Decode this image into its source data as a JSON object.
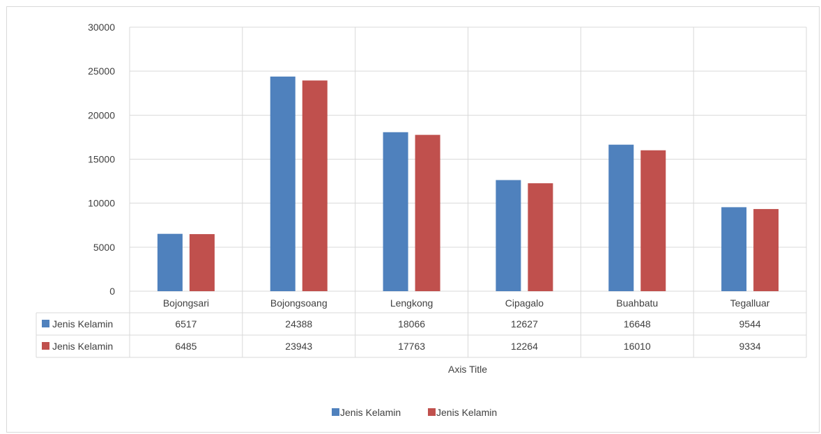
{
  "chart_data": {
    "type": "bar",
    "categories": [
      "Bojongsari",
      "Bojongsoang",
      "Lengkong",
      "Cipagalo",
      "Buahbatu",
      "Tegalluar"
    ],
    "series": [
      {
        "name": "Jenis Kelamin",
        "color": "#4f81bd",
        "values": [
          6517,
          24388,
          18066,
          12627,
          16648,
          9544
        ]
      },
      {
        "name": "Jenis Kelamin",
        "color": "#c0504d",
        "values": [
          6485,
          23943,
          17763,
          12264,
          16010,
          9334
        ]
      }
    ],
    "y_ticks": [
      0,
      5000,
      10000,
      15000,
      20000,
      25000,
      30000
    ],
    "ylim": [
      0,
      30000
    ],
    "xlabel": "Axis Title",
    "ylabel": "",
    "title": "",
    "grid": true,
    "data_table": true,
    "legend_position": "bottom",
    "gridline_color": "#d9d9d9"
  }
}
